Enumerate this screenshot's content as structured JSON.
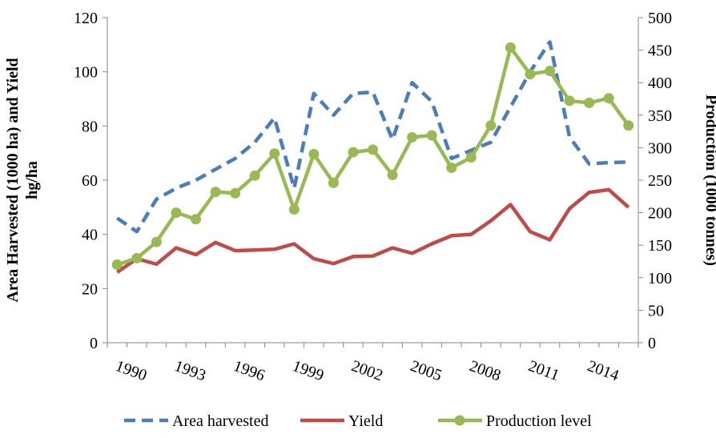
{
  "chart_data": {
    "type": "line",
    "categories": [
      null,
      "1990",
      null,
      null,
      "1993",
      null,
      null,
      "1996",
      null,
      null,
      "1999",
      null,
      null,
      "2002",
      null,
      null,
      "2005",
      null,
      null,
      "2008",
      null,
      null,
      "2011",
      null,
      null,
      "2014",
      null
    ],
    "y_label": [
      "Area Harvested (1000 ha) and Yield",
      "hg/ha"
    ],
    "y2_label": "Production (1000 tonnes)",
    "ylim": [
      0,
      120
    ],
    "yticks": [
      0,
      20,
      40,
      60,
      80,
      100,
      120
    ],
    "y2lim": [
      0,
      500
    ],
    "y2ticks": [
      0,
      50,
      100,
      150,
      200,
      250,
      300,
      350,
      400,
      450,
      500
    ],
    "grid": false,
    "legend": "bottom",
    "series": [
      {
        "name": "Area harvested",
        "color": "#4a7ebb",
        "dash": true,
        "marker": false,
        "values": [
          46,
          41,
          53,
          57,
          60,
          64,
          68,
          74,
          83,
          57,
          92,
          84,
          92,
          92.5,
          75,
          96,
          89,
          68,
          71,
          74,
          87,
          100,
          111,
          76,
          66,
          66.5,
          66.7
        ]
      },
      {
        "name": "Yield",
        "color": "#be4b48",
        "dash": false,
        "marker": false,
        "values": [
          26,
          31,
          29,
          35,
          32.5,
          37,
          34,
          34.2,
          34.5,
          36.5,
          31,
          29.2,
          31.8,
          32,
          35,
          33,
          36.5,
          39.5,
          40,
          45,
          51,
          41,
          38,
          49.5,
          55.5,
          56.5,
          50
        ]
      },
      {
        "name": "Production level",
        "color": "#98b954",
        "dash": false,
        "marker": true,
        "axis": "y2",
        "values": [
          120,
          130,
          155,
          200,
          190,
          232,
          230,
          257,
          291,
          205,
          290,
          246,
          293,
          297,
          258,
          316,
          319,
          269,
          285,
          334,
          454,
          413,
          418,
          372,
          369,
          376,
          334
        ]
      }
    ]
  }
}
